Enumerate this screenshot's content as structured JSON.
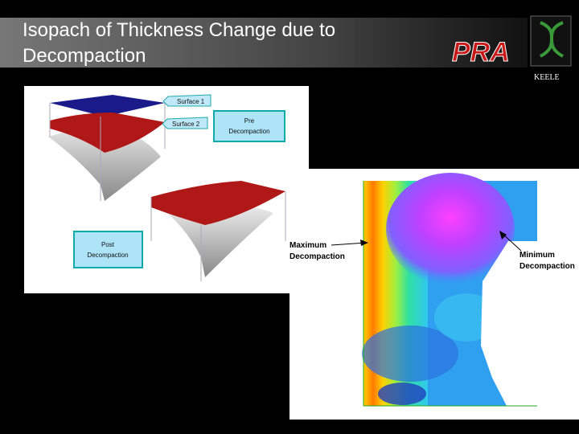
{
  "header": {
    "title_lines": [
      "Isopach of Thickness Change due to",
      "Decompaction"
    ],
    "logo": "PRA",
    "caption": "KEELE"
  },
  "left_figure": {
    "surface_1": "Surface 1",
    "surface_2": "Surface 2",
    "pre_lines": [
      "Pre",
      "Decompaction"
    ],
    "post_lines": [
      "Post",
      "Decompaction"
    ]
  },
  "right_figure": {
    "maximum_lines": [
      "Maximum",
      "Decompaction"
    ],
    "minimum_lines": [
      "Minimum",
      "Decompaction"
    ]
  }
}
